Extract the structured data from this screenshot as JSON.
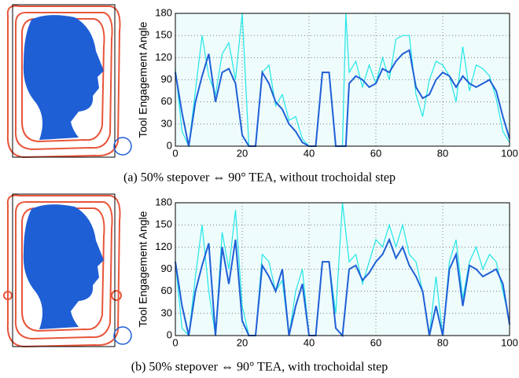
{
  "chart_data": [
    {
      "type": "line",
      "caption": "(a)  50% stepover ⇔ 90° TEA, without trochoidal step",
      "y_label": "Tool Engagement Angle",
      "x": [
        0,
        2,
        4,
        6,
        8,
        10,
        12,
        14,
        16,
        18,
        20,
        22,
        24,
        26,
        28,
        30,
        32,
        34,
        36,
        38,
        40,
        42,
        44,
        46,
        48,
        50,
        51,
        52,
        54,
        56,
        58,
        60,
        62,
        64,
        66,
        68,
        70,
        72,
        74,
        76,
        78,
        80,
        82,
        84,
        86,
        88,
        90,
        92,
        94,
        96,
        98,
        100
      ],
      "series": [
        {
          "color": "#22e6e6",
          "values": [
            105,
            20,
            0,
            75,
            150,
            95,
            70,
            125,
            140,
            90,
            180,
            0,
            0,
            100,
            110,
            55,
            70,
            35,
            40,
            10,
            0,
            0,
            100,
            100,
            0,
            0,
            180,
            100,
            115,
            80,
            110,
            85,
            120,
            90,
            145,
            150,
            150,
            70,
            40,
            90,
            115,
            110,
            95,
            60,
            135,
            75,
            110,
            105,
            95,
            65,
            20,
            5
          ]
        },
        {
          "color": "#1f5fd6",
          "values": [
            100,
            45,
            0,
            60,
            95,
            125,
            60,
            100,
            105,
            85,
            15,
            0,
            0,
            100,
            85,
            60,
            50,
            30,
            20,
            5,
            0,
            0,
            100,
            100,
            0,
            0,
            0,
            85,
            95,
            90,
            80,
            85,
            105,
            100,
            115,
            125,
            130,
            80,
            65,
            70,
            90,
            100,
            95,
            80,
            95,
            85,
            80,
            85,
            90,
            75,
            40,
            10
          ]
        }
      ],
      "xlim": [
        0,
        100
      ],
      "ylim": [
        0,
        180
      ],
      "xticks": [
        0,
        20,
        40,
        60,
        80,
        100
      ],
      "yticks": [
        0,
        30,
        60,
        90,
        120,
        150,
        180
      ],
      "grid": true
    },
    {
      "type": "line",
      "caption": "(b)  50% stepover ⇔ 90° TEA, with trochoidal step",
      "y_label": "Tool Engagement Angle",
      "x": [
        0,
        2,
        4,
        6,
        8,
        10,
        12,
        14,
        16,
        18,
        20,
        22,
        24,
        26,
        28,
        30,
        32,
        34,
        36,
        38,
        40,
        42,
        44,
        46,
        48,
        50,
        52,
        54,
        56,
        58,
        60,
        62,
        64,
        66,
        68,
        70,
        72,
        74,
        76,
        78,
        80,
        82,
        84,
        86,
        88,
        90,
        92,
        94,
        96,
        98,
        100
      ],
      "series": [
        {
          "color": "#22e6e6",
          "values": [
            100,
            10,
            0,
            80,
            150,
            60,
            0,
            140,
            90,
            170,
            40,
            0,
            0,
            110,
            100,
            60,
            75,
            0,
            60,
            90,
            0,
            0,
            100,
            100,
            30,
            180,
            100,
            110,
            70,
            100,
            130,
            120,
            150,
            120,
            150,
            110,
            100,
            60,
            0,
            80,
            0,
            100,
            130,
            50,
            100,
            120,
            90,
            110,
            100,
            60,
            20
          ]
        },
        {
          "color": "#1f5fd6",
          "values": [
            100,
            40,
            0,
            60,
            95,
            125,
            0,
            120,
            70,
            130,
            20,
            0,
            0,
            95,
            80,
            60,
            90,
            0,
            40,
            70,
            0,
            0,
            100,
            100,
            10,
            0,
            90,
            95,
            75,
            85,
            100,
            110,
            130,
            105,
            120,
            95,
            80,
            60,
            0,
            40,
            0,
            90,
            110,
            40,
            95,
            90,
            80,
            85,
            90,
            70,
            15
          ]
        }
      ],
      "xlim": [
        0,
        100
      ],
      "ylim": [
        0,
        180
      ],
      "xticks": [
        0,
        20,
        40,
        60,
        80,
        100
      ],
      "yticks": [
        0,
        30,
        60,
        90,
        120,
        150,
        180
      ],
      "grid": true
    }
  ]
}
